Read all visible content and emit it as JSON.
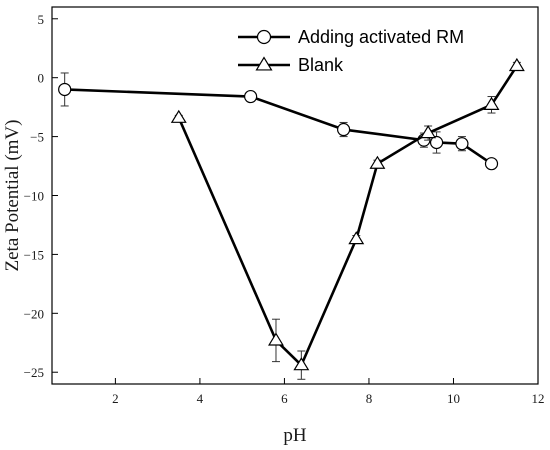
{
  "chart_data": {
    "type": "line",
    "title": "",
    "xlabel": "pH",
    "ylabel": "Zeta Potential (mV)",
    "xlim": [
      0.5,
      12
    ],
    "ylim": [
      -26,
      6
    ],
    "xticks": [
      2,
      4,
      6,
      8,
      10,
      12
    ],
    "yticks": [
      5,
      0,
      -5,
      -10,
      -15,
      -20,
      -25
    ],
    "xtick_labels": [
      "2",
      "4",
      "6",
      "8",
      "10",
      "12"
    ],
    "ytick_labels": [
      "5",
      "0",
      "−5",
      "−10",
      "−15",
      "−20",
      "−25"
    ],
    "grid": false,
    "legend_position": "top-right",
    "series": [
      {
        "name": "Adding activated RM",
        "marker": "circle",
        "color": "#000000",
        "x": [
          0.8,
          5.2,
          7.4,
          9.3,
          9.6,
          10.2,
          10.9
        ],
        "y": [
          -1.0,
          -1.6,
          -4.4,
          -5.3,
          -5.5,
          -5.6,
          -7.3
        ],
        "err": [
          1.4,
          0.4,
          0.6,
          0.6,
          0.9,
          0.6,
          0.3
        ]
      },
      {
        "name": "Blank",
        "marker": "triangle",
        "color": "#000000",
        "x": [
          3.5,
          5.8,
          6.4,
          7.7,
          8.2,
          9.4,
          10.9,
          11.5
        ],
        "y": [
          -3.4,
          -22.3,
          -24.4,
          -13.7,
          -7.3,
          -4.7,
          -2.3,
          1.0
        ],
        "err": [
          0.2,
          1.8,
          1.2,
          0.3,
          0.3,
          0.6,
          0.7,
          0.3
        ]
      }
    ]
  }
}
